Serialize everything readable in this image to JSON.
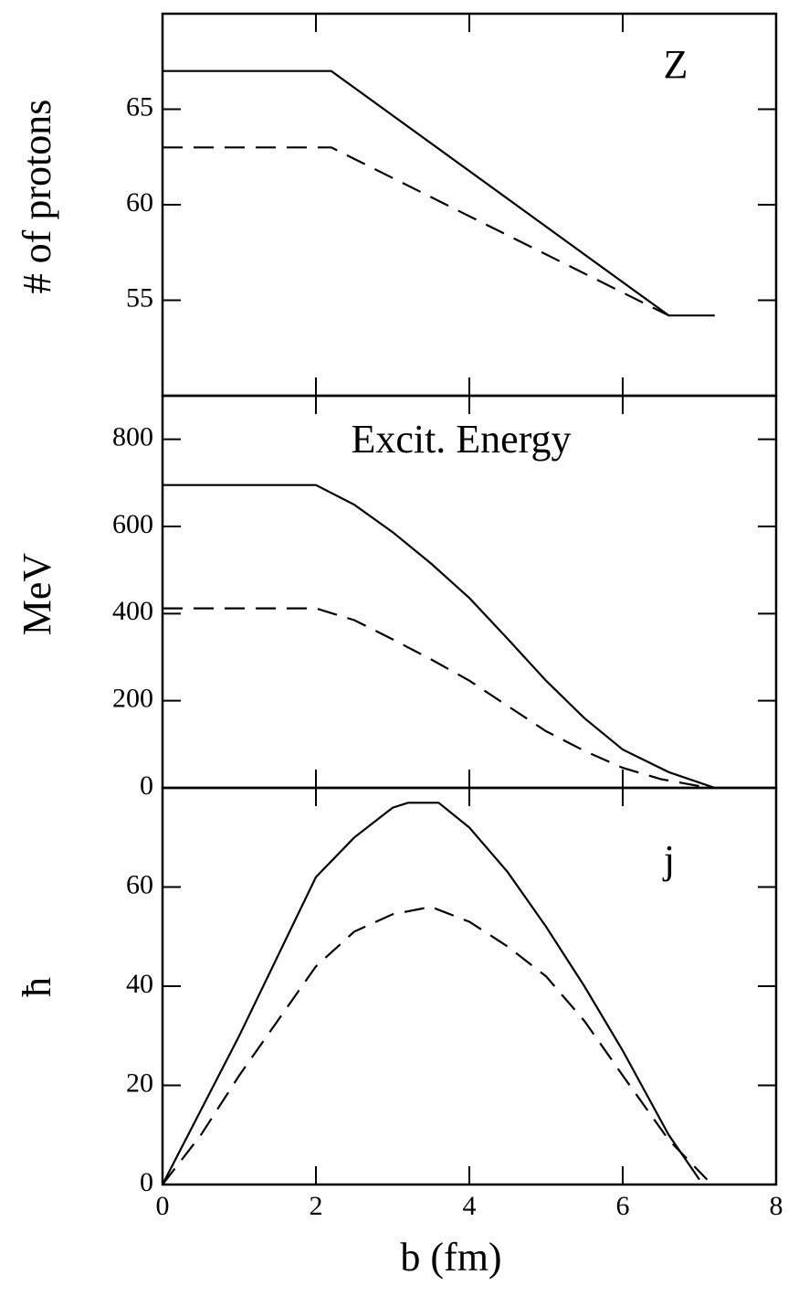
{
  "chart_data": [
    {
      "type": "line",
      "annotation": "Z",
      "ylabel": "# of protons",
      "xlim": [
        0,
        8
      ],
      "xticks": [
        0,
        2,
        4,
        6,
        8
      ],
      "ylim": [
        50,
        70
      ],
      "yticks": [
        55,
        60,
        65
      ],
      "series": [
        {
          "linestyle": "solid",
          "color": "#000000",
          "x": [
            0,
            2.2,
            6.6,
            7.2
          ],
          "values": [
            67,
            67,
            54.2,
            54.2
          ]
        },
        {
          "linestyle": "dashed",
          "color": "#000000",
          "x": [
            0,
            2.2,
            6.6
          ],
          "values": [
            63,
            63,
            54.2
          ]
        }
      ]
    },
    {
      "type": "line",
      "annotation": "Excit. Energy",
      "ylabel": "MeV",
      "xlim": [
        0,
        8
      ],
      "xticks": [
        0,
        2,
        4,
        6,
        8
      ],
      "ylim": [
        0,
        900
      ],
      "yticks": [
        0,
        200,
        400,
        600,
        800
      ],
      "series": [
        {
          "linestyle": "solid",
          "color": "#000000",
          "x": [
            0,
            2,
            2.5,
            3,
            3.5,
            4,
            4.5,
            5,
            5.5,
            6,
            6.6,
            7.2
          ],
          "values": [
            695,
            695,
            650,
            587,
            515,
            436,
            342,
            246,
            160,
            88,
            36,
            0
          ]
        },
        {
          "linestyle": "dashed",
          "color": "#000000",
          "x": [
            0,
            2,
            2.5,
            3,
            3.5,
            4,
            4.5,
            5,
            5.5,
            6,
            6.5,
            7
          ],
          "values": [
            412,
            412,
            385,
            341,
            295,
            246,
            188,
            130,
            85,
            46,
            20,
            4
          ]
        }
      ]
    },
    {
      "type": "line",
      "annotation": "j",
      "ylabel": "ħ",
      "xlabel": "b (fm)",
      "xlim": [
        0,
        8
      ],
      "xticks": [
        0,
        2,
        4,
        6,
        8
      ],
      "ylim": [
        0,
        80
      ],
      "yticks": [
        0,
        20,
        40,
        60
      ],
      "series": [
        {
          "linestyle": "solid",
          "color": "#000000",
          "x": [
            0,
            0.5,
            1,
            1.5,
            2,
            2.5,
            3,
            3.2,
            3.6,
            4,
            4.5,
            5,
            5.5,
            6,
            6.6,
            7
          ],
          "values": [
            0,
            15,
            30,
            46,
            62,
            70,
            76,
            77,
            77,
            72,
            63,
            52,
            40,
            27,
            10,
            1
          ]
        },
        {
          "linestyle": "dashed",
          "color": "#000000",
          "x": [
            0,
            0.5,
            1,
            1.5,
            2,
            2.5,
            3,
            3.5,
            4,
            4.5,
            5,
            5.5,
            6,
            6.6,
            7.1
          ],
          "values": [
            0,
            10,
            22,
            33,
            44,
            51,
            54.5,
            56,
            53,
            48,
            42,
            33,
            22,
            9,
            1
          ]
        }
      ]
    }
  ]
}
